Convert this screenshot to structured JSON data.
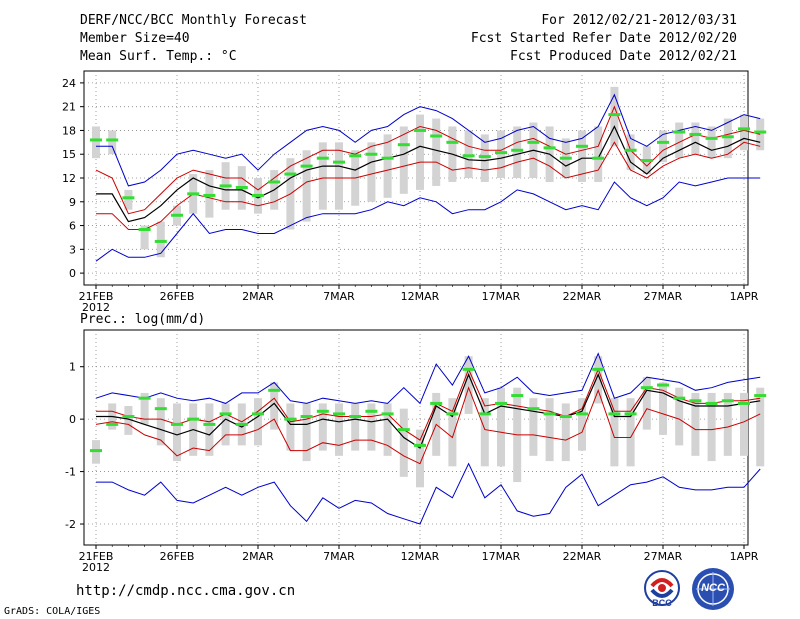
{
  "header": {
    "title": "DERF/NCC/BCC Monthly Forecast",
    "member_size": "Member Size=40",
    "variable_1": "Mean Surf. Temp.: °C",
    "period": "For 2012/02/21-2012/03/31",
    "started": "Fcst Started Refer Date 2012/02/20",
    "produced": "Fcst Produced Date 2012/02/21"
  },
  "variable_2": "Prec.: log(mm/d)",
  "footer": {
    "url": "http://cmdp.ncc.cma.gov.cn",
    "credit": "GrADS: COLA/IGES",
    "logo1_text": "BCC",
    "logo2_text": "NCC"
  },
  "colors": {
    "max_min": "#0000cc",
    "spread": "#cc0000",
    "mean": "#000000",
    "obs": "#33dd33",
    "box": "#d3d3d3"
  },
  "chart_data": [
    {
      "type": "line",
      "title": "Mean Surf. Temp.: °C",
      "x_labels": [
        "21FEB\n2012",
        "26FEB",
        "2MAR",
        "7MAR",
        "12MAR",
        "17MAR",
        "22MAR",
        "27MAR",
        "1APR"
      ],
      "x_label_days": [
        0,
        5,
        10,
        15,
        20,
        25,
        30,
        35,
        40
      ],
      "ylim": [
        -1.5,
        25.5
      ],
      "yticks": [
        0,
        3,
        6,
        9,
        12,
        15,
        18,
        21,
        24
      ],
      "series": [
        {
          "name": "max",
          "values": [
            16,
            16,
            11,
            11.5,
            13,
            15,
            15.5,
            15,
            14.5,
            15,
            13,
            15,
            16.5,
            18,
            18.5,
            18,
            16.5,
            18,
            18.5,
            20,
            21,
            20.5,
            19.5,
            18,
            16.5,
            17,
            18,
            18.5,
            17,
            16.5,
            17,
            18.5,
            22.5,
            17,
            16,
            17.5,
            18,
            18.5,
            18,
            19,
            20,
            19.5
          ]
        },
        {
          "name": "upper",
          "values": [
            13,
            12,
            7.5,
            8,
            10,
            12,
            13,
            12.5,
            12,
            12,
            10.5,
            12,
            13.5,
            14.5,
            15.5,
            15.5,
            15,
            16,
            16.5,
            17.5,
            18.5,
            18,
            17,
            16,
            15.5,
            15.5,
            16.5,
            17,
            16,
            15,
            15.5,
            16,
            21,
            15.5,
            13.5,
            15.5,
            16.5,
            17.5,
            17,
            17.5,
            18,
            17.5
          ]
        },
        {
          "name": "mean",
          "values": [
            10,
            10,
            6.5,
            7,
            8.5,
            10.5,
            12,
            11,
            10.5,
            10.5,
            9.5,
            10.5,
            12,
            13,
            13.5,
            13.5,
            13,
            14,
            14.5,
            15,
            16,
            15.5,
            15,
            14.3,
            14.2,
            14.5,
            15,
            15.5,
            15,
            13.5,
            14.5,
            14.5,
            18.5,
            14,
            12.5,
            14.5,
            15.5,
            16.5,
            15.5,
            16,
            17,
            16.5
          ]
        },
        {
          "name": "lower",
          "values": [
            7.5,
            7.5,
            5.5,
            5.5,
            6.5,
            8.5,
            10,
            9.5,
            9,
            9,
            8.5,
            9,
            10,
            11.5,
            12,
            12,
            12,
            12.5,
            13,
            13.5,
            14,
            14,
            13,
            13.3,
            13,
            13.3,
            14,
            14.5,
            13.5,
            12,
            12.5,
            13,
            16.5,
            13,
            12,
            13.5,
            14.5,
            15,
            14.5,
            15,
            16.5,
            16
          ]
        },
        {
          "name": "min",
          "values": [
            1.5,
            3,
            2,
            2,
            2.5,
            5,
            7.5,
            5,
            5.5,
            5.5,
            5,
            5,
            6,
            7,
            7.5,
            7.5,
            7.5,
            8,
            9,
            8.5,
            9.5,
            9,
            7.5,
            8,
            8,
            9,
            10.5,
            10,
            9,
            8,
            8.5,
            8,
            11.5,
            9.5,
            8.5,
            9.5,
            11.5,
            11,
            11.5,
            12,
            12,
            12
          ]
        },
        {
          "name": "obs",
          "values": [
            16.8,
            16.8,
            9.5,
            5.5,
            4,
            7.3,
            10,
            9.8,
            11,
            10.8,
            9.8,
            11.5,
            12.5,
            13.5,
            14.5,
            14,
            14.8,
            15,
            14.5,
            16.2,
            18,
            17.3,
            16.5,
            14.8,
            14.7,
            15.2,
            15.5,
            16.5,
            15.8,
            14.5,
            16,
            14.5,
            20,
            15.5,
            14.2,
            16.5,
            17.8,
            17.5,
            17,
            17.2,
            18.2,
            17.8
          ]
        },
        {
          "name": "box_low",
          "values": [
            14.5,
            15,
            8,
            3,
            2,
            6,
            7.5,
            7,
            8,
            8,
            7.5,
            8,
            5.5,
            6.5,
            8,
            8,
            8.5,
            9,
            9.5,
            10,
            10.5,
            11,
            11.5,
            12,
            11.5,
            12,
            12,
            12,
            11.5,
            12,
            11.5,
            11.5,
            16,
            13,
            12.5,
            14,
            14.5,
            15,
            14.5,
            14.5,
            15.5,
            15.5
          ]
        },
        {
          "name": "box_high",
          "values": [
            18.5,
            18,
            10.5,
            6,
            6.5,
            8.5,
            12.5,
            13,
            14,
            13.5,
            12,
            13,
            14.5,
            15.5,
            16.5,
            16.5,
            15.5,
            16.5,
            17.5,
            18.5,
            20,
            19.5,
            18.5,
            18,
            17.5,
            18,
            18.5,
            19,
            18.5,
            17,
            18,
            18.5,
            23.5,
            17.5,
            16,
            18,
            19,
            19,
            18.5,
            19.5,
            20,
            19.5
          ]
        }
      ]
    },
    {
      "type": "line",
      "title": "Prec.: log(mm/d)",
      "x_labels": [
        "21FEB\n2012",
        "26FEB",
        "2MAR",
        "7MAR",
        "12MAR",
        "17MAR",
        "22MAR",
        "27MAR",
        "1APR"
      ],
      "x_label_days": [
        0,
        5,
        10,
        15,
        20,
        25,
        30,
        35,
        40
      ],
      "ylim": [
        -2.4,
        1.7
      ],
      "yticks": [
        -2,
        -1,
        0,
        1
      ],
      "series": [
        {
          "name": "max",
          "values": [
            0.4,
            0.5,
            0.45,
            0.4,
            0.5,
            0.4,
            0.35,
            0.4,
            0.3,
            0.5,
            0.5,
            0.7,
            0.35,
            0.3,
            0.4,
            0.35,
            0.3,
            0.35,
            0.3,
            0.6,
            0.3,
            1.05,
            0.65,
            1.2,
            0.5,
            0.6,
            0.8,
            0.5,
            0.45,
            0.5,
            0.55,
            1.25,
            0.4,
            0.5,
            0.8,
            0.75,
            0.7,
            0.55,
            0.6,
            0.7,
            0.75,
            0.8
          ]
        },
        {
          "name": "upper",
          "values": [
            0.15,
            0.15,
            0.05,
            0,
            0,
            -0.1,
            0,
            -0.05,
            0.1,
            -0.05,
            0.15,
            0.4,
            -0.05,
            0,
            0.1,
            0.05,
            0.05,
            0.05,
            0.1,
            -0.2,
            -0.4,
            0.3,
            0.15,
            0.95,
            0.25,
            0.3,
            0.25,
            0.2,
            0.15,
            0.05,
            0.2,
            0.95,
            0.15,
            0.15,
            0.6,
            0.55,
            0.4,
            0.3,
            0.3,
            0.35,
            0.35,
            0.4
          ]
        },
        {
          "name": "mean",
          "values": [
            0.05,
            0.05,
            0,
            -0.1,
            -0.2,
            -0.3,
            -0.2,
            -0.3,
            0,
            -0.15,
            0.05,
            0.3,
            -0.1,
            -0.1,
            0,
            -0.05,
            0,
            -0.05,
            0,
            -0.35,
            -0.55,
            0.25,
            0.05,
            0.85,
            0.1,
            0.25,
            0.2,
            0.15,
            0.1,
            0.05,
            0.15,
            0.85,
            0.05,
            0.05,
            0.55,
            0.5,
            0.35,
            0.25,
            0.25,
            0.25,
            0.3,
            0.35
          ]
        },
        {
          "name": "lower",
          "values": [
            -0.1,
            -0.05,
            -0.1,
            -0.3,
            -0.4,
            -0.7,
            -0.55,
            -0.6,
            -0.3,
            -0.3,
            -0.2,
            0,
            -0.6,
            -0.6,
            -0.45,
            -0.5,
            -0.4,
            -0.4,
            -0.5,
            -0.7,
            -0.85,
            -0.1,
            -0.35,
            0.6,
            -0.2,
            -0.25,
            -0.3,
            -0.3,
            -0.35,
            -0.4,
            -0.25,
            0.55,
            -0.35,
            -0.35,
            0.2,
            0.1,
            0,
            -0.2,
            -0.2,
            -0.15,
            -0.05,
            0.1
          ]
        },
        {
          "name": "min",
          "values": [
            -1.2,
            -1.2,
            -1.35,
            -1.45,
            -1.2,
            -1.55,
            -1.6,
            -1.45,
            -1.3,
            -1.45,
            -1.3,
            -1.2,
            -1.65,
            -1.95,
            -1.5,
            -1.7,
            -1.55,
            -1.6,
            -1.8,
            -1.9,
            -2.0,
            -1.3,
            -1.5,
            -0.85,
            -1.5,
            -1.25,
            -1.75,
            -1.85,
            -1.8,
            -1.3,
            -1.05,
            -1.65,
            -1.45,
            -1.25,
            -1.2,
            -1.1,
            -1.3,
            -1.35,
            -1.35,
            -1.3,
            -1.3,
            -0.95
          ]
        },
        {
          "name": "obs",
          "values": [
            -0.6,
            -0.1,
            0.05,
            0.4,
            0.2,
            -0.1,
            0,
            -0.1,
            0.1,
            -0.1,
            0.1,
            0.55,
            0,
            0.05,
            0.15,
            0.1,
            0.05,
            0.15,
            0.1,
            -0.2,
            -0.5,
            0.3,
            0.1,
            0.95,
            0.1,
            0.3,
            0.45,
            0.2,
            0.1,
            0.05,
            0.1,
            0.95,
            0.1,
            0.1,
            0.6,
            0.65,
            0.4,
            0.35,
            0.3,
            0.35,
            0.3,
            0.45
          ]
        },
        {
          "name": "box_low",
          "values": [
            -0.85,
            -0.2,
            -0.3,
            -0.1,
            -0.5,
            -0.8,
            -0.7,
            -0.7,
            -0.5,
            -0.5,
            -0.5,
            -0.2,
            -0.6,
            -0.8,
            -0.6,
            -0.7,
            -0.6,
            -0.6,
            -0.7,
            -1.1,
            -1.3,
            -0.7,
            -0.9,
            0.1,
            -0.9,
            -0.9,
            -1.2,
            -0.7,
            -0.8,
            -0.8,
            -0.6,
            0.3,
            -0.9,
            -0.9,
            -0.2,
            -0.3,
            -0.5,
            -0.7,
            -0.8,
            -0.7,
            -0.7,
            -0.9
          ]
        },
        {
          "name": "box_high",
          "values": [
            -0.4,
            0.3,
            0.25,
            0.5,
            0.4,
            0.3,
            0.3,
            0.3,
            0.3,
            0.3,
            0.4,
            0.7,
            0.3,
            0.3,
            0.3,
            0.3,
            0.3,
            0.3,
            0.3,
            0.2,
            -0.2,
            0.5,
            0.4,
            1.2,
            0.4,
            0.6,
            0.6,
            0.4,
            0.4,
            0.3,
            0.4,
            1.2,
            0.4,
            0.4,
            0.8,
            0.7,
            0.6,
            0.5,
            0.5,
            0.5,
            0.5,
            0.6
          ]
        }
      ]
    }
  ]
}
